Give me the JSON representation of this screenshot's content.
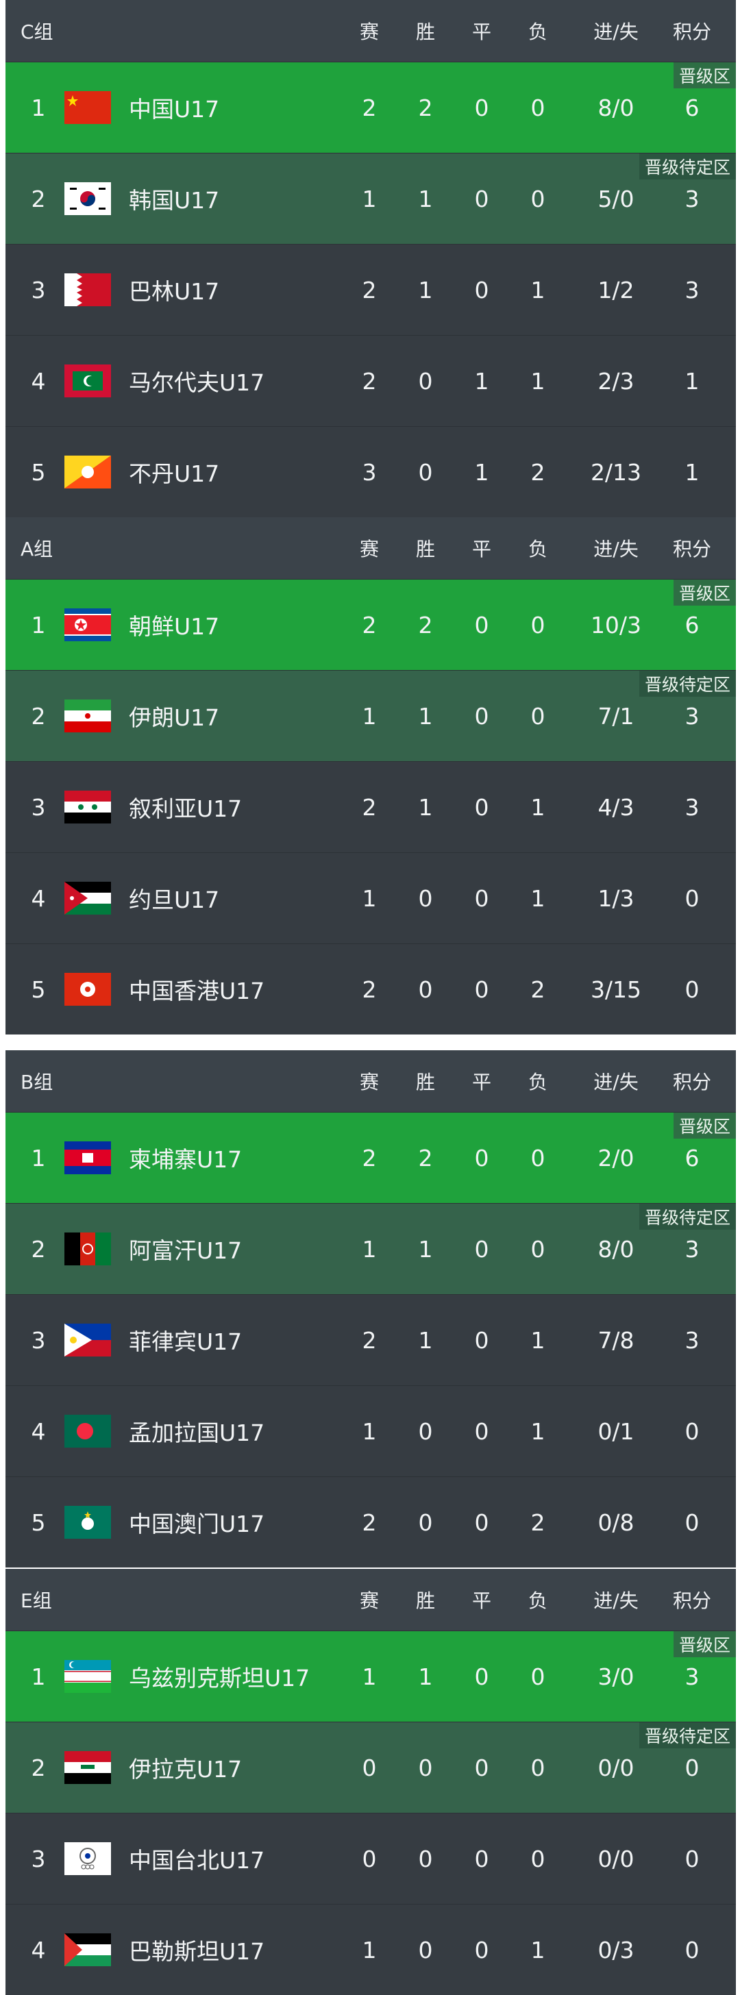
{
  "columns": [
    "赛",
    "胜",
    "平",
    "负",
    "进/失",
    "积分"
  ],
  "badges": {
    "advance": "晋级区",
    "pending": "晋级待定区"
  },
  "colors": {
    "header": "#3b434a",
    "advance": "#1fa23c",
    "pending": "#35634b",
    "row": "#363c42"
  },
  "groups": [
    {
      "title": "C组",
      "rows": [
        {
          "rank": "1",
          "team": "中国U17",
          "flag": "china-flag",
          "played": "2",
          "won": "2",
          "drawn": "0",
          "lost": "0",
          "goals": "8/0",
          "points": "6",
          "zone": "advance"
        },
        {
          "rank": "2",
          "team": "韩国U17",
          "flag": "south-korea-flag",
          "played": "1",
          "won": "1",
          "drawn": "0",
          "lost": "0",
          "goals": "5/0",
          "points": "3",
          "zone": "pending"
        },
        {
          "rank": "3",
          "team": "巴林U17",
          "flag": "bahrain-flag",
          "played": "2",
          "won": "1",
          "drawn": "0",
          "lost": "1",
          "goals": "1/2",
          "points": "3",
          "zone": ""
        },
        {
          "rank": "4",
          "team": "马尔代夫U17",
          "flag": "maldives-flag",
          "played": "2",
          "won": "0",
          "drawn": "1",
          "lost": "1",
          "goals": "2/3",
          "points": "1",
          "zone": ""
        },
        {
          "rank": "5",
          "team": "不丹U17",
          "flag": "bhutan-flag",
          "played": "3",
          "won": "0",
          "drawn": "1",
          "lost": "2",
          "goals": "2/13",
          "points": "1",
          "zone": ""
        }
      ]
    },
    {
      "title": "A组",
      "rows": [
        {
          "rank": "1",
          "team": "朝鲜U17",
          "flag": "north-korea-flag",
          "played": "2",
          "won": "2",
          "drawn": "0",
          "lost": "0",
          "goals": "10/3",
          "points": "6",
          "zone": "advance"
        },
        {
          "rank": "2",
          "team": "伊朗U17",
          "flag": "iran-flag",
          "played": "1",
          "won": "1",
          "drawn": "0",
          "lost": "0",
          "goals": "7/1",
          "points": "3",
          "zone": "pending"
        },
        {
          "rank": "3",
          "team": "叙利亚U17",
          "flag": "syria-flag",
          "played": "2",
          "won": "1",
          "drawn": "0",
          "lost": "1",
          "goals": "4/3",
          "points": "3",
          "zone": ""
        },
        {
          "rank": "4",
          "team": "约旦U17",
          "flag": "jordan-flag",
          "played": "1",
          "won": "0",
          "drawn": "0",
          "lost": "1",
          "goals": "1/3",
          "points": "0",
          "zone": ""
        },
        {
          "rank": "5",
          "team": "中国香港U17",
          "flag": "hong-kong-flag",
          "played": "2",
          "won": "0",
          "drawn": "0",
          "lost": "2",
          "goals": "3/15",
          "points": "0",
          "zone": ""
        }
      ]
    },
    {
      "title": "B组",
      "rows": [
        {
          "rank": "1",
          "team": "柬埔寨U17",
          "flag": "cambodia-flag",
          "played": "2",
          "won": "2",
          "drawn": "0",
          "lost": "0",
          "goals": "2/0",
          "points": "6",
          "zone": "advance"
        },
        {
          "rank": "2",
          "team": "阿富汗U17",
          "flag": "afghanistan-flag",
          "played": "1",
          "won": "1",
          "drawn": "0",
          "lost": "0",
          "goals": "8/0",
          "points": "3",
          "zone": "pending"
        },
        {
          "rank": "3",
          "team": "菲律宾U17",
          "flag": "philippines-flag",
          "played": "2",
          "won": "1",
          "drawn": "0",
          "lost": "1",
          "goals": "7/8",
          "points": "3",
          "zone": ""
        },
        {
          "rank": "4",
          "team": "孟加拉国U17",
          "flag": "bangladesh-flag",
          "played": "1",
          "won": "0",
          "drawn": "0",
          "lost": "1",
          "goals": "0/1",
          "points": "0",
          "zone": ""
        },
        {
          "rank": "5",
          "team": "中国澳门U17",
          "flag": "macau-flag",
          "played": "2",
          "won": "0",
          "drawn": "0",
          "lost": "2",
          "goals": "0/8",
          "points": "0",
          "zone": ""
        }
      ]
    },
    {
      "title": "E组",
      "rows": [
        {
          "rank": "1",
          "team": "乌兹别克斯坦U17",
          "flag": "uzbekistan-flag",
          "played": "1",
          "won": "1",
          "drawn": "0",
          "lost": "0",
          "goals": "3/0",
          "points": "3",
          "zone": "advance"
        },
        {
          "rank": "2",
          "team": "伊拉克U17",
          "flag": "iraq-flag",
          "played": "0",
          "won": "0",
          "drawn": "0",
          "lost": "0",
          "goals": "0/0",
          "points": "0",
          "zone": "pending"
        },
        {
          "rank": "3",
          "team": "中国台北U17",
          "flag": "chinese-taipei-flag",
          "played": "0",
          "won": "0",
          "drawn": "0",
          "lost": "0",
          "goals": "0/0",
          "points": "0",
          "zone": ""
        },
        {
          "rank": "4",
          "team": "巴勒斯坦U17",
          "flag": "palestine-flag",
          "played": "1",
          "won": "0",
          "drawn": "0",
          "lost": "1",
          "goals": "0/3",
          "points": "0",
          "zone": ""
        }
      ]
    }
  ]
}
